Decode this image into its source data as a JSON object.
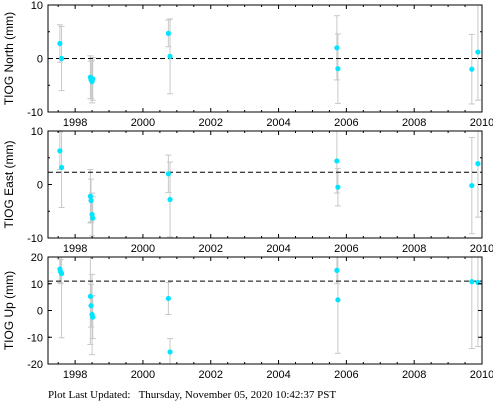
{
  "footer": {
    "label": "Plot Last Updated:",
    "datetime": "Thursday, November 05, 2020 10:42:37 PST"
  },
  "colors": {
    "points": "#00e5ff",
    "error_bars": "#c8c8c8",
    "mean_line": "#000000"
  },
  "chart_data": [
    {
      "type": "scatter",
      "title": "",
      "ylabel": "TIOG North (mm)",
      "xlabel": "",
      "xlim": [
        1997.2,
        2010
      ],
      "ylim": [
        -10,
        10
      ],
      "xticks": [
        "1998",
        "2000",
        "2002",
        "2004",
        "2006",
        "2008",
        "2010"
      ],
      "yticks": [
        "-10",
        "0",
        "10"
      ],
      "mean": 0,
      "grid": false,
      "points": [
        {
          "x": 1997.55,
          "y": 2.8,
          "err": 3.5
        },
        {
          "x": 1997.6,
          "y": 0.0,
          "err": 6.0
        },
        {
          "x": 1998.45,
          "y": -3.5,
          "err": 4.0
        },
        {
          "x": 1998.47,
          "y": -4.0,
          "err": 3.5
        },
        {
          "x": 1998.5,
          "y": -4.3,
          "err": 4.0
        },
        {
          "x": 1998.52,
          "y": -3.8,
          "err": 4.0
        },
        {
          "x": 2000.75,
          "y": 4.7,
          "err": 2.5
        },
        {
          "x": 2000.8,
          "y": 0.4,
          "err": 7.0
        },
        {
          "x": 2005.72,
          "y": 2.0,
          "err": 6.0
        },
        {
          "x": 2005.75,
          "y": -1.9,
          "err": 6.5
        },
        {
          "x": 2009.7,
          "y": -2.0,
          "err": 6.5
        },
        {
          "x": 2009.88,
          "y": 1.2,
          "err": 9.0
        }
      ]
    },
    {
      "type": "scatter",
      "title": "",
      "ylabel": "TIOG East (mm)",
      "xlabel": "",
      "xlim": [
        1997.2,
        2010
      ],
      "ylim": [
        -10,
        10
      ],
      "xticks": [
        "1998",
        "2000",
        "2002",
        "2004",
        "2006",
        "2008",
        "2010"
      ],
      "yticks": [
        "-10",
        "0",
        "10"
      ],
      "mean": 2.3,
      "grid": false,
      "points": [
        {
          "x": 1997.55,
          "y": 6.3,
          "err": 3.5
        },
        {
          "x": 1997.6,
          "y": 3.2,
          "err": 7.5
        },
        {
          "x": 1998.45,
          "y": -2.2,
          "err": 5.0
        },
        {
          "x": 1998.47,
          "y": -3.0,
          "err": 4.0
        },
        {
          "x": 1998.5,
          "y": -5.6,
          "err": 4.0
        },
        {
          "x": 1998.52,
          "y": -6.3,
          "err": 4.0
        },
        {
          "x": 2000.75,
          "y": 2.0,
          "err": 3.5
        },
        {
          "x": 2000.8,
          "y": -2.8,
          "err": 7.0
        },
        {
          "x": 2005.72,
          "y": 4.4,
          "err": 6.0
        },
        {
          "x": 2005.75,
          "y": -0.5,
          "err": 3.5
        },
        {
          "x": 2009.7,
          "y": -0.2,
          "err": 9.0
        },
        {
          "x": 2009.88,
          "y": 3.9,
          "err": 10.0
        }
      ]
    },
    {
      "type": "scatter",
      "title": "",
      "ylabel": "TIOG Up (mm)",
      "xlabel": "",
      "xlim": [
        1997.2,
        2010
      ],
      "ylim": [
        -20,
        20
      ],
      "xticks": [
        "1998",
        "2000",
        "2002",
        "2004",
        "2006",
        "2008",
        "2010"
      ],
      "yticks": [
        "-20",
        "-10",
        "0",
        "10",
        "20"
      ],
      "mean": 11,
      "grid": false,
      "points": [
        {
          "x": 1997.55,
          "y": 15.5,
          "err": 5.0
        },
        {
          "x": 1997.57,
          "y": 14.5,
          "err": 4.5
        },
        {
          "x": 1997.6,
          "y": 13.8,
          "err": 24.0
        },
        {
          "x": 1998.45,
          "y": 5.3,
          "err": 18.0
        },
        {
          "x": 1998.47,
          "y": 1.8,
          "err": 8.0
        },
        {
          "x": 1998.5,
          "y": -1.5,
          "err": 15.0
        },
        {
          "x": 1998.52,
          "y": -2.5,
          "err": 8.0
        },
        {
          "x": 2000.75,
          "y": 4.5,
          "err": 6.0
        },
        {
          "x": 2000.8,
          "y": -15.5,
          "err": 5.0
        },
        {
          "x": 2005.72,
          "y": 15.0,
          "err": 5.0
        },
        {
          "x": 2005.75,
          "y": 4.0,
          "err": 20.0
        },
        {
          "x": 2009.7,
          "y": 10.8,
          "err": 25.0
        },
        {
          "x": 2009.88,
          "y": 10.5,
          "err": 24.0
        }
      ]
    }
  ]
}
